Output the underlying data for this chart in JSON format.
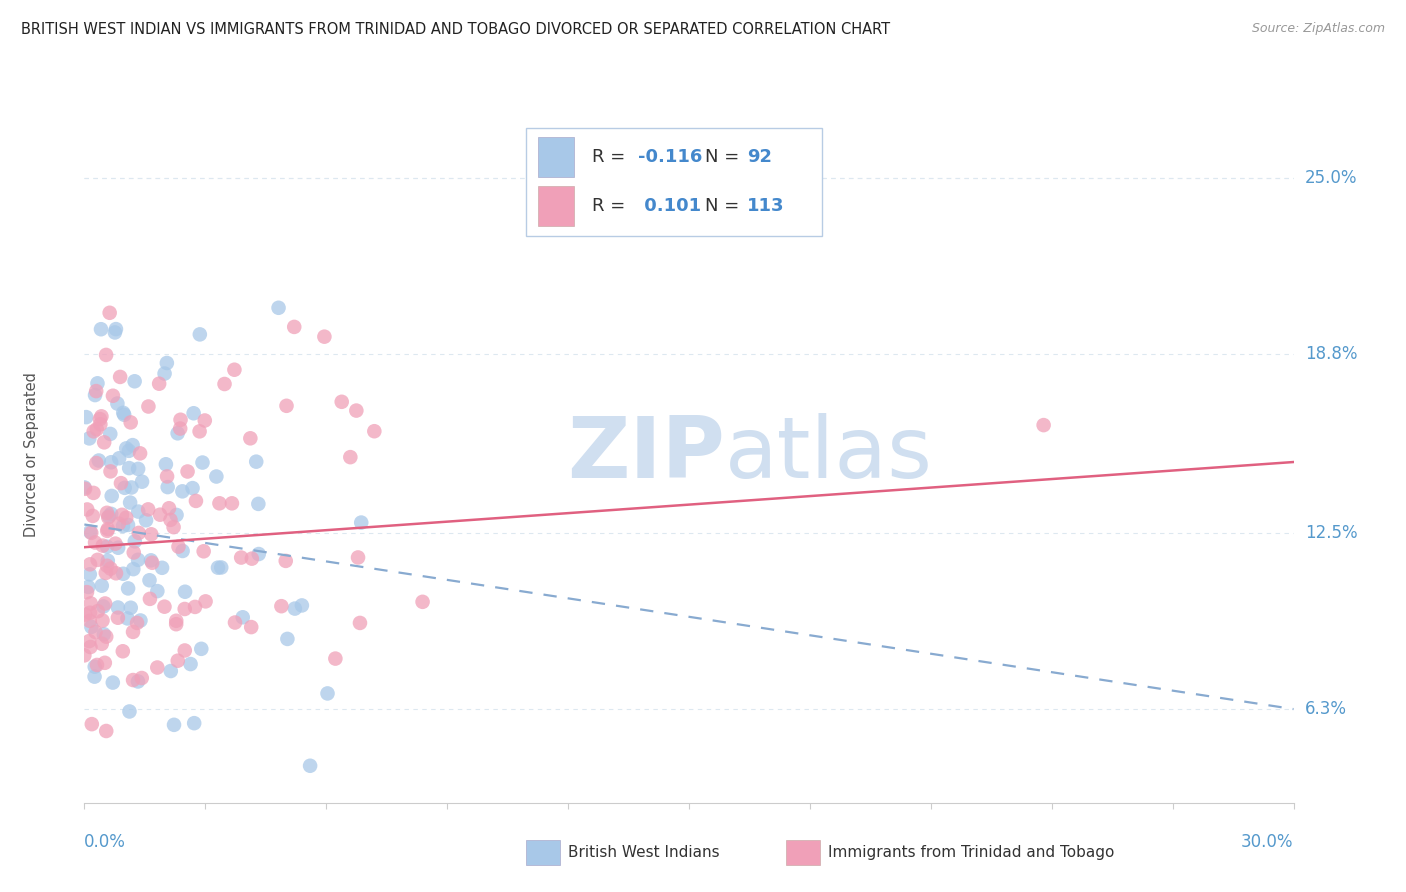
{
  "title": "BRITISH WEST INDIAN VS IMMIGRANTS FROM TRINIDAD AND TOBAGO DIVORCED OR SEPARATED CORRELATION CHART",
  "source": "Source: ZipAtlas.com",
  "ylabel": "Divorced or Separated",
  "yticks": [
    0.063,
    0.125,
    0.188,
    0.25
  ],
  "ytick_labels": [
    "6.3%",
    "12.5%",
    "18.8%",
    "25.0%"
  ],
  "xlim": [
    0.0,
    0.3
  ],
  "ylim": [
    0.03,
    0.275
  ],
  "series1": {
    "label": "British West Indians",
    "R": -0.116,
    "N": 92,
    "color": "#a8c8e8",
    "trend_color": "#88aad0",
    "trend_style": "dashed",
    "trend_x0": 0.0,
    "trend_y0": 0.128,
    "trend_x1": 0.3,
    "trend_y1": 0.063
  },
  "series2": {
    "label": "Immigrants from Trinidad and Tobago",
    "R": 0.101,
    "N": 113,
    "color": "#f0a0b8",
    "trend_color": "#e06080",
    "trend_style": "solid",
    "trend_x0": 0.0,
    "trend_y0": 0.12,
    "trend_x1": 0.3,
    "trend_y1": 0.15
  },
  "watermark_top": "ZIP",
  "watermark_bot": "atlas",
  "watermark_color": "#d0dff0",
  "background_color": "#ffffff",
  "grid_color": "#dde8f0",
  "legend_r1": "-0.116",
  "legend_n1": "92",
  "legend_r2": "0.101",
  "legend_n2": "113"
}
